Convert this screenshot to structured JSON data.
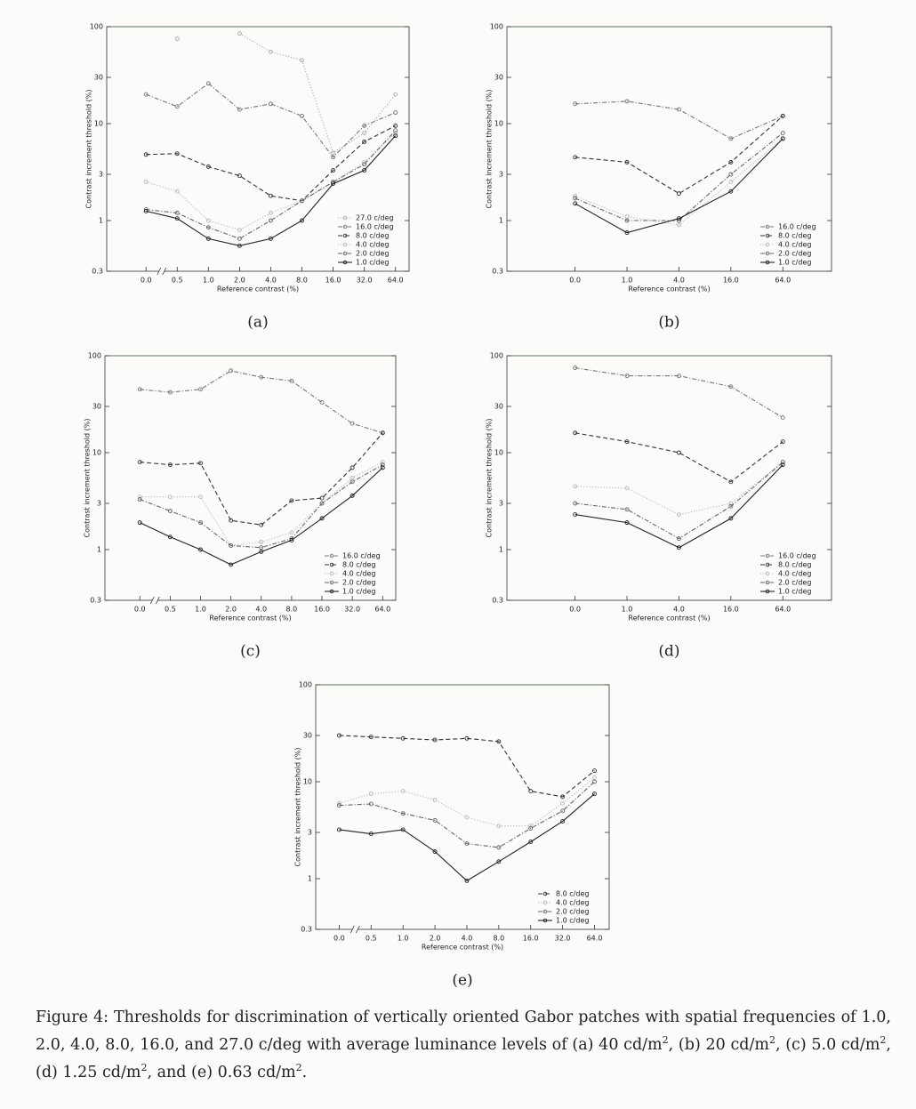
{
  "chart_data": [
    {
      "type": "line",
      "panel": "(a)",
      "xlabel": "Reference contrast (%)",
      "ylabel": "Contrast increment threshold (%)",
      "categories": [
        "0.0",
        "0.5",
        "1.0",
        "2.0",
        "4.0",
        "8.0",
        "16.0",
        "32.0",
        "64.0"
      ],
      "ylim": [
        0.3,
        100
      ],
      "yticks": [
        0.3,
        1,
        3,
        10,
        30,
        100
      ],
      "log_scale": true,
      "legend": "lower right",
      "series": [
        {
          "name": "27.0 c/deg",
          "color": "#aaaaaa",
          "dash": "dotted",
          "values": [
            null,
            75,
            null,
            85,
            55,
            45,
            5,
            8,
            20
          ]
        },
        {
          "name": "16.0 c/deg",
          "color": "#777777",
          "dash": "dashdot",
          "values": [
            20,
            15,
            26,
            14,
            16,
            12,
            4.5,
            9.5,
            13
          ]
        },
        {
          "name": "8.0 c/deg",
          "color": "#333333",
          "dash": "dashed",
          "values": [
            4.8,
            4.9,
            3.6,
            2.9,
            1.8,
            1.6,
            3.3,
            6.5,
            9.5
          ]
        },
        {
          "name": "4.0 c/deg",
          "color": "#bbbbbb",
          "dash": "dotted",
          "values": [
            2.5,
            2,
            1,
            0.8,
            1.2,
            1.6,
            2.5,
            4,
            8
          ]
        },
        {
          "name": "2.0 c/deg",
          "color": "#666666",
          "dash": "dashdot",
          "values": [
            1.3,
            1.2,
            0.85,
            0.65,
            1,
            1.6,
            2.5,
            3.8,
            8.5
          ]
        },
        {
          "name": "1.0 c/deg",
          "color": "#222222",
          "dash": "solid",
          "values": [
            1.25,
            1.05,
            0.65,
            0.55,
            0.65,
            1,
            2.4,
            3.3,
            7.5
          ]
        }
      ]
    },
    {
      "type": "line",
      "panel": "(b)",
      "xlabel": "Reference contrast (%)",
      "ylabel": "Contrast increment threshold (%)",
      "categories": [
        "0.0",
        "1.0",
        "4.0",
        "16.0",
        "64.0"
      ],
      "ylim": [
        0.3,
        100
      ],
      "yticks": [
        0.3,
        1,
        3,
        10,
        30,
        100
      ],
      "log_scale": true,
      "legend": "lower right",
      "series": [
        {
          "name": "16.0 c/deg",
          "color": "#777777",
          "dash": "dashdot",
          "values": [
            16,
            17,
            14,
            7,
            12
          ]
        },
        {
          "name": "8.0 c/deg",
          "color": "#333333",
          "dash": "dashed",
          "values": [
            4.5,
            4,
            1.9,
            4,
            12
          ]
        },
        {
          "name": "4.0 c/deg",
          "color": "#bbbbbb",
          "dash": "dotted",
          "values": [
            1.8,
            1.1,
            0.9,
            2.5,
            7
          ]
        },
        {
          "name": "2.0 c/deg",
          "color": "#666666",
          "dash": "dashdot",
          "values": [
            1.7,
            1,
            1,
            3,
            8
          ]
        },
        {
          "name": "1.0 c/deg",
          "color": "#222222",
          "dash": "solid",
          "values": [
            1.5,
            0.75,
            1.05,
            2,
            7
          ]
        }
      ]
    },
    {
      "type": "line",
      "panel": "(c)",
      "xlabel": "Reference contrast (%)",
      "ylabel": "Contrast increment threshold (%)",
      "categories": [
        "0.0",
        "0.5",
        "1.0",
        "2.0",
        "4.0",
        "8.0",
        "16.0",
        "32.0",
        "64.0"
      ],
      "ylim": [
        0.3,
        100
      ],
      "yticks": [
        0.3,
        1,
        3,
        10,
        30,
        100
      ],
      "log_scale": true,
      "legend": "lower right",
      "series": [
        {
          "name": "16.0 c/deg",
          "color": "#777777",
          "dash": "dashdot",
          "values": [
            45,
            42,
            45,
            70,
            60,
            55,
            33,
            20,
            16
          ]
        },
        {
          "name": "8.0 c/deg",
          "color": "#333333",
          "dash": "dashed",
          "values": [
            8,
            7.5,
            7.8,
            2,
            1.8,
            3.2,
            3.4,
            7,
            16
          ]
        },
        {
          "name": "4.0 c/deg",
          "color": "#bbbbbb",
          "dash": "dotted",
          "values": [
            3.5,
            3.5,
            3.5,
            1.1,
            1.2,
            1.5,
            3,
            5.5,
            8
          ]
        },
        {
          "name": "2.0 c/deg",
          "color": "#666666",
          "dash": "dashdot",
          "values": [
            3.3,
            2.5,
            1.9,
            1.1,
            1.05,
            1.3,
            3,
            5,
            7.5
          ]
        },
        {
          "name": "1.0 c/deg",
          "color": "#222222",
          "dash": "solid",
          "values": [
            1.9,
            1.35,
            1,
            0.7,
            0.95,
            1.25,
            2.1,
            3.6,
            7
          ]
        }
      ]
    },
    {
      "type": "line",
      "panel": "(d)",
      "xlabel": "Reference contrast (%)",
      "ylabel": "Contrast increment threshold (%)",
      "categories": [
        "0.0",
        "1.0",
        "4.0",
        "16.0",
        "64.0"
      ],
      "ylim": [
        0.3,
        100
      ],
      "yticks": [
        0.3,
        1,
        3,
        10,
        30,
        100
      ],
      "log_scale": true,
      "legend": "lower right",
      "series": [
        {
          "name": "16.0 c/deg",
          "color": "#777777",
          "dash": "dashdot",
          "values": [
            75,
            62,
            62,
            48,
            23
          ]
        },
        {
          "name": "8.0 c/deg",
          "color": "#333333",
          "dash": "dashed",
          "values": [
            16,
            13,
            10,
            5,
            13
          ]
        },
        {
          "name": "4.0 c/deg",
          "color": "#bbbbbb",
          "dash": "dotted",
          "values": [
            4.5,
            4.3,
            2.3,
            3,
            8
          ]
        },
        {
          "name": "2.0 c/deg",
          "color": "#666666",
          "dash": "dashdot",
          "values": [
            3,
            2.6,
            1.3,
            2.8,
            8
          ]
        },
        {
          "name": "1.0 c/deg",
          "color": "#222222",
          "dash": "solid",
          "values": [
            2.3,
            1.9,
            1.05,
            2.1,
            7.5
          ]
        }
      ]
    },
    {
      "type": "line",
      "panel": "(e)",
      "xlabel": "Reference contrast (%)",
      "ylabel": "Contrast increment threshold (%)",
      "categories": [
        "0.0",
        "0.5",
        "1.0",
        "2.0",
        "4.0",
        "8.0",
        "16.0",
        "32.0",
        "64.0"
      ],
      "ylim": [
        0.3,
        100
      ],
      "yticks": [
        0.3,
        1,
        3,
        10,
        30,
        100
      ],
      "log_scale": true,
      "legend": "lower right",
      "series": [
        {
          "name": "8.0 c/deg",
          "color": "#333333",
          "dash": "dashed",
          "values": [
            30,
            29,
            28,
            27,
            28,
            26,
            8,
            7,
            13
          ]
        },
        {
          "name": "4.0 c/deg",
          "color": "#bbbbbb",
          "dash": "dotted",
          "values": [
            6,
            7.5,
            8,
            6.5,
            4.3,
            3.5,
            3.5,
            6,
            11
          ]
        },
        {
          "name": "2.0 c/deg",
          "color": "#666666",
          "dash": "dashdot",
          "values": [
            5.7,
            5.9,
            4.7,
            4,
            2.3,
            2.1,
            3.3,
            5,
            10
          ]
        },
        {
          "name": "1.0 c/deg",
          "color": "#222222",
          "dash": "solid",
          "values": [
            3.2,
            2.9,
            3.2,
            1.9,
            0.95,
            1.5,
            2.4,
            3.9,
            7.5
          ]
        }
      ]
    }
  ],
  "caption": [
    "Figure 4: Thresholds for discrimination of vertically oriented Gabor patches with spatial frequencies of 1.0, 2.0, 4.0, 8.0, 16.0, and 27.0 c/deg with average luminance levels of (a) 40 cd/m",
    "2",
    ", (b) 20 cd/m",
    "2",
    ", (c) 5.0 cd/m",
    "2",
    ", (d) 1.25 cd/m",
    "2",
    ", and (e) 0.63 cd/m",
    "2",
    "."
  ]
}
